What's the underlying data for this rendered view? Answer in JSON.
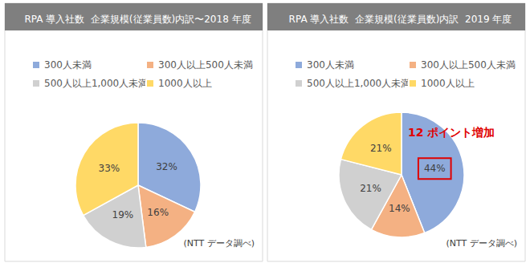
{
  "chart_data": [
    {
      "type": "pie",
      "title": "RPA 導入社数  企業規模(従業員数)内訳〜2018 年度",
      "categories": [
        "300人未満",
        "300人以上500人未満",
        "500人以上1,000人未満",
        "1000人以上"
      ],
      "values": [
        32,
        16,
        19,
        33
      ],
      "value_labels": [
        "32%",
        "16%",
        "19%",
        "33%"
      ],
      "colors": [
        "#8eaadb",
        "#f4b183",
        "#d0d0d0",
        "#ffd966"
      ],
      "data_labels": true,
      "legend": "top",
      "source": "(NTT データ調べ)"
    },
    {
      "type": "pie",
      "title": "RPA 導入社数  企業規模(従業員数)内訳  2019 年度",
      "categories": [
        "300人未満",
        "300人以上500人未満",
        "500人以上1,000人未満",
        "1000人以上"
      ],
      "values": [
        44,
        14,
        21,
        21
      ],
      "value_labels": [
        "44%",
        "14%",
        "21%",
        "21%"
      ],
      "colors": [
        "#8eaadb",
        "#f4b183",
        "#d0d0d0",
        "#ffd966"
      ],
      "data_labels": true,
      "legend": "top",
      "source": "(NTT データ調べ)",
      "annotations": [
        {
          "text": "12 ポイント増加",
          "category": "300人未満"
        }
      ]
    }
  ]
}
